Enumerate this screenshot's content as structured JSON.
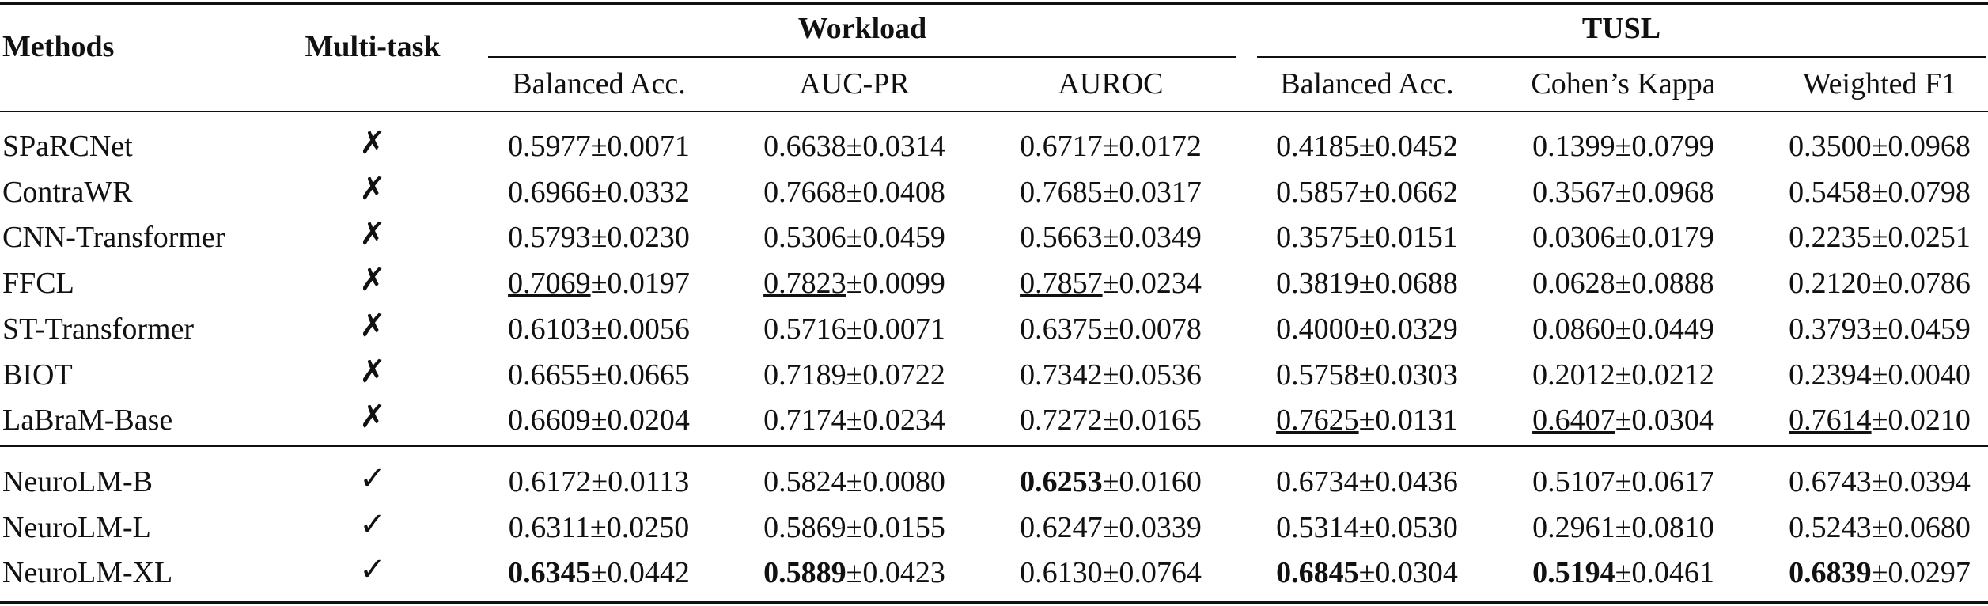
{
  "table": {
    "headers": {
      "methods": "Methods",
      "multitask": "Multi-task"
    },
    "column_groups": [
      {
        "title": "Workload",
        "columns": [
          "Balanced Acc.",
          "AUC-PR",
          "AUROC"
        ]
      },
      {
        "title": "TUSL",
        "columns": [
          "Balanced Acc.",
          "Cohen’s Kappa",
          "Weighted F1"
        ]
      }
    ],
    "row_groups": [
      [
        {
          "method": "SPaRCNet",
          "multitask": "✗",
          "cells": [
            {
              "mean": "0.5977",
              "std": "±0.0071"
            },
            {
              "mean": "0.6638",
              "std": "±0.0314"
            },
            {
              "mean": "0.6717",
              "std": "±0.0172"
            },
            {
              "mean": "0.4185",
              "std": "±0.0452"
            },
            {
              "mean": "0.1399",
              "std": "±0.0799"
            },
            {
              "mean": "0.3500",
              "std": "±0.0968"
            }
          ]
        },
        {
          "method": "ContraWR",
          "multitask": "✗",
          "cells": [
            {
              "mean": "0.6966",
              "std": "±0.0332"
            },
            {
              "mean": "0.7668",
              "std": "±0.0408"
            },
            {
              "mean": "0.7685",
              "std": "±0.0317"
            },
            {
              "mean": "0.5857",
              "std": "±0.0662"
            },
            {
              "mean": "0.3567",
              "std": "±0.0968"
            },
            {
              "mean": "0.5458",
              "std": "±0.0798"
            }
          ]
        },
        {
          "method": "CNN-Transformer",
          "multitask": "✗",
          "cells": [
            {
              "mean": "0.5793",
              "std": "±0.0230"
            },
            {
              "mean": "0.5306",
              "std": "±0.0459"
            },
            {
              "mean": "0.5663",
              "std": "±0.0349"
            },
            {
              "mean": "0.3575",
              "std": "±0.0151"
            },
            {
              "mean": "0.0306",
              "std": "±0.0179"
            },
            {
              "mean": "0.2235",
              "std": "±0.0251"
            }
          ]
        },
        {
          "method": "FFCL",
          "multitask": "✗",
          "cells": [
            {
              "mean": "0.7069",
              "std": "±0.0197",
              "style": "underline"
            },
            {
              "mean": "0.7823",
              "std": "±0.0099",
              "style": "underline"
            },
            {
              "mean": "0.7857",
              "std": "±0.0234",
              "style": "underline"
            },
            {
              "mean": "0.3819",
              "std": "±0.0688"
            },
            {
              "mean": "0.0628",
              "std": "±0.0888"
            },
            {
              "mean": "0.2120",
              "std": "±0.0786"
            }
          ]
        },
        {
          "method": "ST-Transformer",
          "multitask": "✗",
          "cells": [
            {
              "mean": "0.6103",
              "std": "±0.0056"
            },
            {
              "mean": "0.5716",
              "std": "±0.0071"
            },
            {
              "mean": "0.6375",
              "std": "±0.0078"
            },
            {
              "mean": "0.4000",
              "std": "±0.0329"
            },
            {
              "mean": "0.0860",
              "std": "±0.0449"
            },
            {
              "mean": "0.3793",
              "std": "±0.0459"
            }
          ]
        },
        {
          "method": "BIOT",
          "multitask": "✗",
          "cells": [
            {
              "mean": "0.6655",
              "std": "±0.0665"
            },
            {
              "mean": "0.7189",
              "std": "±0.0722"
            },
            {
              "mean": "0.7342",
              "std": "±0.0536"
            },
            {
              "mean": "0.5758",
              "std": "±0.0303"
            },
            {
              "mean": "0.2012",
              "std": "±0.0212"
            },
            {
              "mean": "0.2394",
              "std": "±0.0040"
            }
          ]
        },
        {
          "method": "LaBraM-Base",
          "multitask": "✗",
          "cells": [
            {
              "mean": "0.6609",
              "std": "±0.0204"
            },
            {
              "mean": "0.7174",
              "std": "±0.0234"
            },
            {
              "mean": "0.7272",
              "std": "±0.0165"
            },
            {
              "mean": "0.7625",
              "std": "±0.0131",
              "style": "underline"
            },
            {
              "mean": "0.6407",
              "std": "±0.0304",
              "style": "underline"
            },
            {
              "mean": "0.7614",
              "std": "±0.0210",
              "style": "underline"
            }
          ]
        }
      ],
      [
        {
          "method": "NeuroLM-B",
          "multitask": "✓",
          "cells": [
            {
              "mean": "0.6172",
              "std": "±0.0113"
            },
            {
              "mean": "0.5824",
              "std": "±0.0080"
            },
            {
              "mean": "0.6253",
              "std": "±0.0160",
              "style": "bold"
            },
            {
              "mean": "0.6734",
              "std": "±0.0436"
            },
            {
              "mean": "0.5107",
              "std": "±0.0617"
            },
            {
              "mean": "0.6743",
              "std": "±0.0394"
            }
          ]
        },
        {
          "method": "NeuroLM-L",
          "multitask": "✓",
          "cells": [
            {
              "mean": "0.6311",
              "std": "±0.0250"
            },
            {
              "mean": "0.5869",
              "std": "±0.0155"
            },
            {
              "mean": "0.6247",
              "std": "±0.0339"
            },
            {
              "mean": "0.5314",
              "std": "±0.0530"
            },
            {
              "mean": "0.2961",
              "std": "±0.0810"
            },
            {
              "mean": "0.5243",
              "std": "±0.0680"
            }
          ]
        },
        {
          "method": "NeuroLM-XL",
          "multitask": "✓",
          "cells": [
            {
              "mean": "0.6345",
              "std": "±0.0442",
              "style": "bold"
            },
            {
              "mean": "0.5889",
              "std": "±0.0423",
              "style": "bold"
            },
            {
              "mean": "0.6130",
              "std": "±0.0764"
            },
            {
              "mean": "0.6845",
              "std": "±0.0304",
              "style": "bold"
            },
            {
              "mean": "0.5194",
              "std": "±0.0461",
              "style": "bold"
            },
            {
              "mean": "0.6839",
              "std": "±0.0297",
              "style": "bold"
            }
          ]
        }
      ]
    ]
  }
}
